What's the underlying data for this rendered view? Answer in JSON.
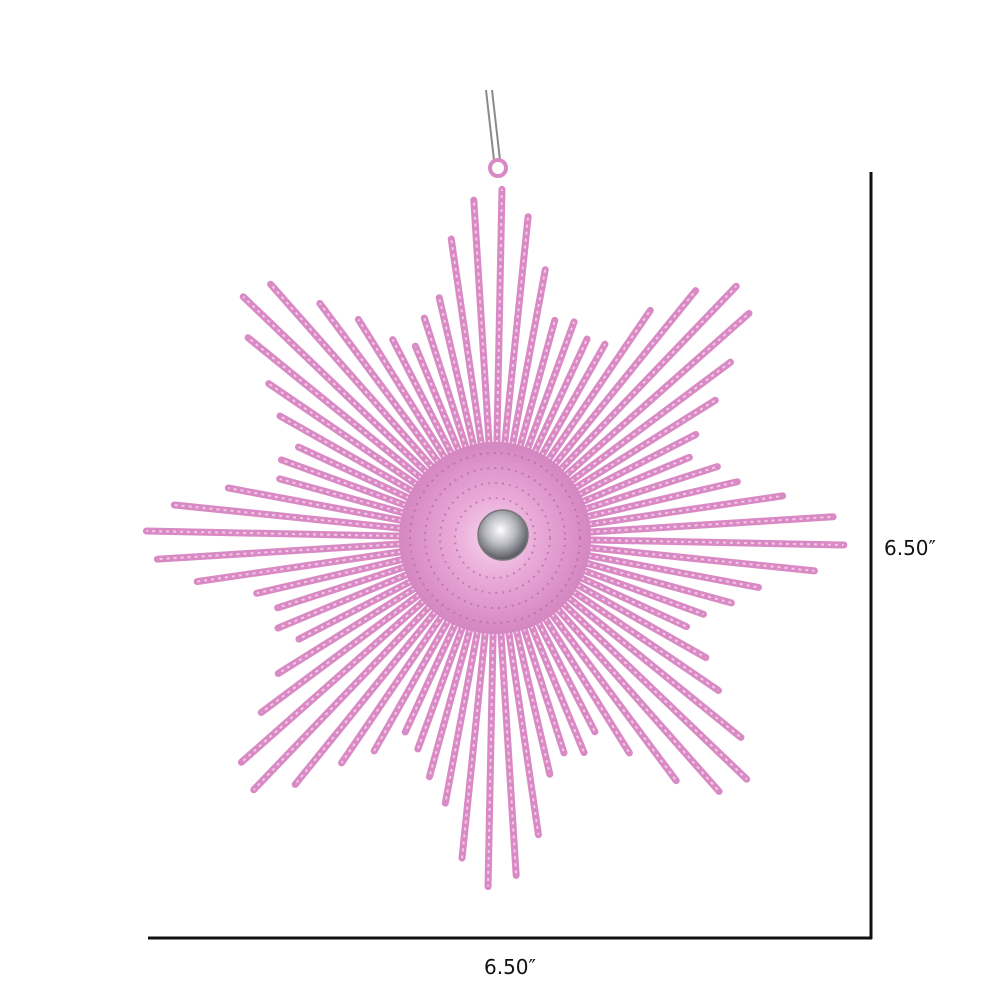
{
  "product": {
    "height_label": "6.50″",
    "width_label": "6.50″"
  },
  "colors": {
    "background": "#ffffff",
    "ornament_pink": "#d98ac4",
    "ornament_light": "#f2c9e6",
    "ornament_dark": "#b0609a",
    "gem": "#c9c9cf",
    "dimension_line": "#111111",
    "string": "#8a8a8a"
  }
}
